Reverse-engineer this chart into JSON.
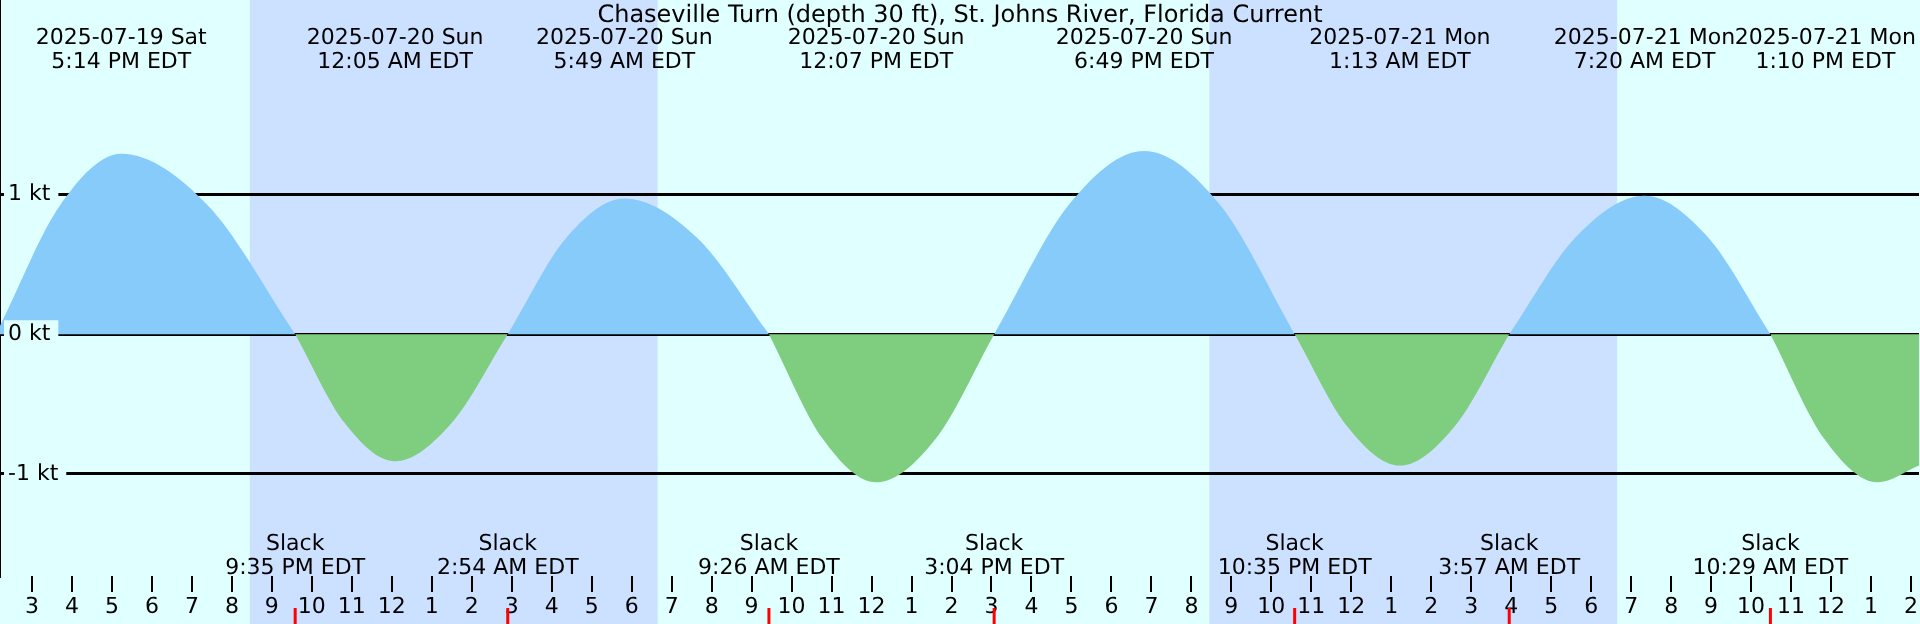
{
  "chart_data": {
    "type": "area",
    "title": "Chaseville Turn (depth 30 ft), St. Johns River, Florida Current",
    "x": [
      "2025-07-19T14:12",
      "2025-07-19T15:42",
      "2025-07-19T17:14",
      "2025-07-19T19:24",
      "2025-07-19T21:35",
      "2025-07-19T22:50",
      "2025-07-20T00:05",
      "2025-07-20T01:29",
      "2025-07-20T02:54",
      "2025-07-20T04:22",
      "2025-07-20T05:49",
      "2025-07-20T07:38",
      "2025-07-20T09:26",
      "2025-07-20T10:47",
      "2025-07-20T12:07",
      "2025-07-20T13:36",
      "2025-07-20T15:04",
      "2025-07-20T16:57",
      "2025-07-20T18:49",
      "2025-07-20T20:42",
      "2025-07-20T22:35",
      "2025-07-20T23:54",
      "2025-07-21T01:13",
      "2025-07-21T02:35",
      "2025-07-21T03:57",
      "2025-07-21T05:38",
      "2025-07-21T07:20",
      "2025-07-21T08:54",
      "2025-07-21T10:29",
      "2025-07-21T11:50",
      "2025-07-21T13:10",
      "2025-07-21T14:12"
    ],
    "series": [
      {
        "color": "#87cbfb",
        "values": [
          0.06,
          0.92,
          1.29,
          0.92,
          0,
          null,
          null,
          null,
          0,
          0.69,
          0.97,
          0.69,
          0,
          null,
          null,
          null,
          0,
          0.93,
          1.31,
          0.93,
          0,
          null,
          null,
          null,
          0,
          0.7,
          0.99,
          0.7,
          0,
          null,
          null,
          null
        ]
      },
      {
        "color": "#7fce7f",
        "values": [
          null,
          null,
          null,
          null,
          0,
          -0.64,
          -0.91,
          -0.64,
          0,
          null,
          null,
          null,
          0,
          -0.75,
          -1.06,
          -0.75,
          0,
          null,
          null,
          null,
          0,
          -0.66,
          -0.94,
          -0.66,
          0,
          null,
          null,
          null,
          0,
          -0.75,
          -1.06,
          -0.94
        ]
      }
    ],
    "xlim": [
      "2025-07-19T14:12",
      "2025-07-21T14:12"
    ],
    "xticks": [
      {
        "value": "2025-07-19T15:00",
        "label": "3"
      },
      {
        "value": "2025-07-19T16:00",
        "label": "4"
      },
      {
        "value": "2025-07-19T17:00",
        "label": "5"
      },
      {
        "value": "2025-07-19T18:00",
        "label": "6"
      },
      {
        "value": "2025-07-19T19:00",
        "label": "7"
      },
      {
        "value": "2025-07-19T20:00",
        "label": "8"
      },
      {
        "value": "2025-07-19T21:00",
        "label": "9"
      },
      {
        "value": "2025-07-19T22:00",
        "label": "10"
      },
      {
        "value": "2025-07-19T23:00",
        "label": "11"
      },
      {
        "value": "2025-07-20T00:00",
        "label": "12"
      },
      {
        "value": "2025-07-20T01:00",
        "label": "1"
      },
      {
        "value": "2025-07-20T02:00",
        "label": "2"
      },
      {
        "value": "2025-07-20T03:00",
        "label": "3"
      },
      {
        "value": "2025-07-20T04:00",
        "label": "4"
      },
      {
        "value": "2025-07-20T05:00",
        "label": "5"
      },
      {
        "value": "2025-07-20T06:00",
        "label": "6"
      },
      {
        "value": "2025-07-20T07:00",
        "label": "7"
      },
      {
        "value": "2025-07-20T08:00",
        "label": "8"
      },
      {
        "value": "2025-07-20T09:00",
        "label": "9"
      },
      {
        "value": "2025-07-20T10:00",
        "label": "10"
      },
      {
        "value": "2025-07-20T11:00",
        "label": "11"
      },
      {
        "value": "2025-07-20T12:00",
        "label": "12"
      },
      {
        "value": "2025-07-20T13:00",
        "label": "1"
      },
      {
        "value": "2025-07-20T14:00",
        "label": "2"
      },
      {
        "value": "2025-07-20T15:00",
        "label": "3"
      },
      {
        "value": "2025-07-20T16:00",
        "label": "4"
      },
      {
        "value": "2025-07-20T17:00",
        "label": "5"
      },
      {
        "value": "2025-07-20T18:00",
        "label": "6"
      },
      {
        "value": "2025-07-20T19:00",
        "label": "7"
      },
      {
        "value": "2025-07-20T20:00",
        "label": "8"
      },
      {
        "value": "2025-07-20T21:00",
        "label": "9"
      },
      {
        "value": "2025-07-20T22:00",
        "label": "10"
      },
      {
        "value": "2025-07-20T23:00",
        "label": "11"
      },
      {
        "value": "2025-07-21T00:00",
        "label": "12"
      },
      {
        "value": "2025-07-21T01:00",
        "label": "1"
      },
      {
        "value": "2025-07-21T02:00",
        "label": "2"
      },
      {
        "value": "2025-07-21T03:00",
        "label": "3"
      },
      {
        "value": "2025-07-21T04:00",
        "label": "4"
      },
      {
        "value": "2025-07-21T05:00",
        "label": "5"
      },
      {
        "value": "2025-07-21T06:00",
        "label": "6"
      },
      {
        "value": "2025-07-21T07:00",
        "label": "7"
      },
      {
        "value": "2025-07-21T08:00",
        "label": "8"
      },
      {
        "value": "2025-07-21T09:00",
        "label": "9"
      },
      {
        "value": "2025-07-21T10:00",
        "label": "10"
      },
      {
        "value": "2025-07-21T11:00",
        "label": "11"
      },
      {
        "value": "2025-07-21T12:00",
        "label": "12"
      },
      {
        "value": "2025-07-21T13:00",
        "label": "1"
      },
      {
        "value": "2025-07-21T14:00",
        "label": "2"
      }
    ],
    "ylim": [
      -1.73,
      2.39
    ],
    "yticks": [
      {
        "value": 1,
        "label": "1 kt"
      },
      {
        "value": 0,
        "label": "0 kt"
      },
      {
        "value": -1,
        "label": "-1 kt"
      }
    ],
    "grid": "y",
    "marker": "none",
    "bands": [
      {
        "axis": "x",
        "from": "2025-07-19T20:27",
        "to": "2025-07-20T06:39",
        "color": "#cce0ff"
      },
      {
        "axis": "x",
        "from": "2025-07-20T20:27",
        "to": "2025-07-21T06:39",
        "color": "#cce0ff"
      }
    ],
    "annotations": [
      "2025-07-19 Sat\n5:14 PM EDT",
      "2025-07-20 Sun\n12:05 AM EDT",
      "2025-07-20 Sun\n5:49 AM EDT",
      "2025-07-20 Sun\n12:07 PM EDT",
      "2025-07-20 Sun\n6:49 PM EDT",
      "2025-07-21 Mon\n1:13 AM EDT",
      "2025-07-21 Mon\n7:20 AM EDT",
      "2025-07-21 Mon\n1:10 PM EDT",
      "Slack\n9:35 PM EDT",
      "Slack\n2:54 AM EDT",
      "Slack\n9:26 AM EDT",
      "Slack\n3:04 PM EDT",
      "Slack\n10:35 PM EDT",
      "Slack\n3:57 AM EDT",
      "Slack\n10:29 AM EDT"
    ]
  }
}
